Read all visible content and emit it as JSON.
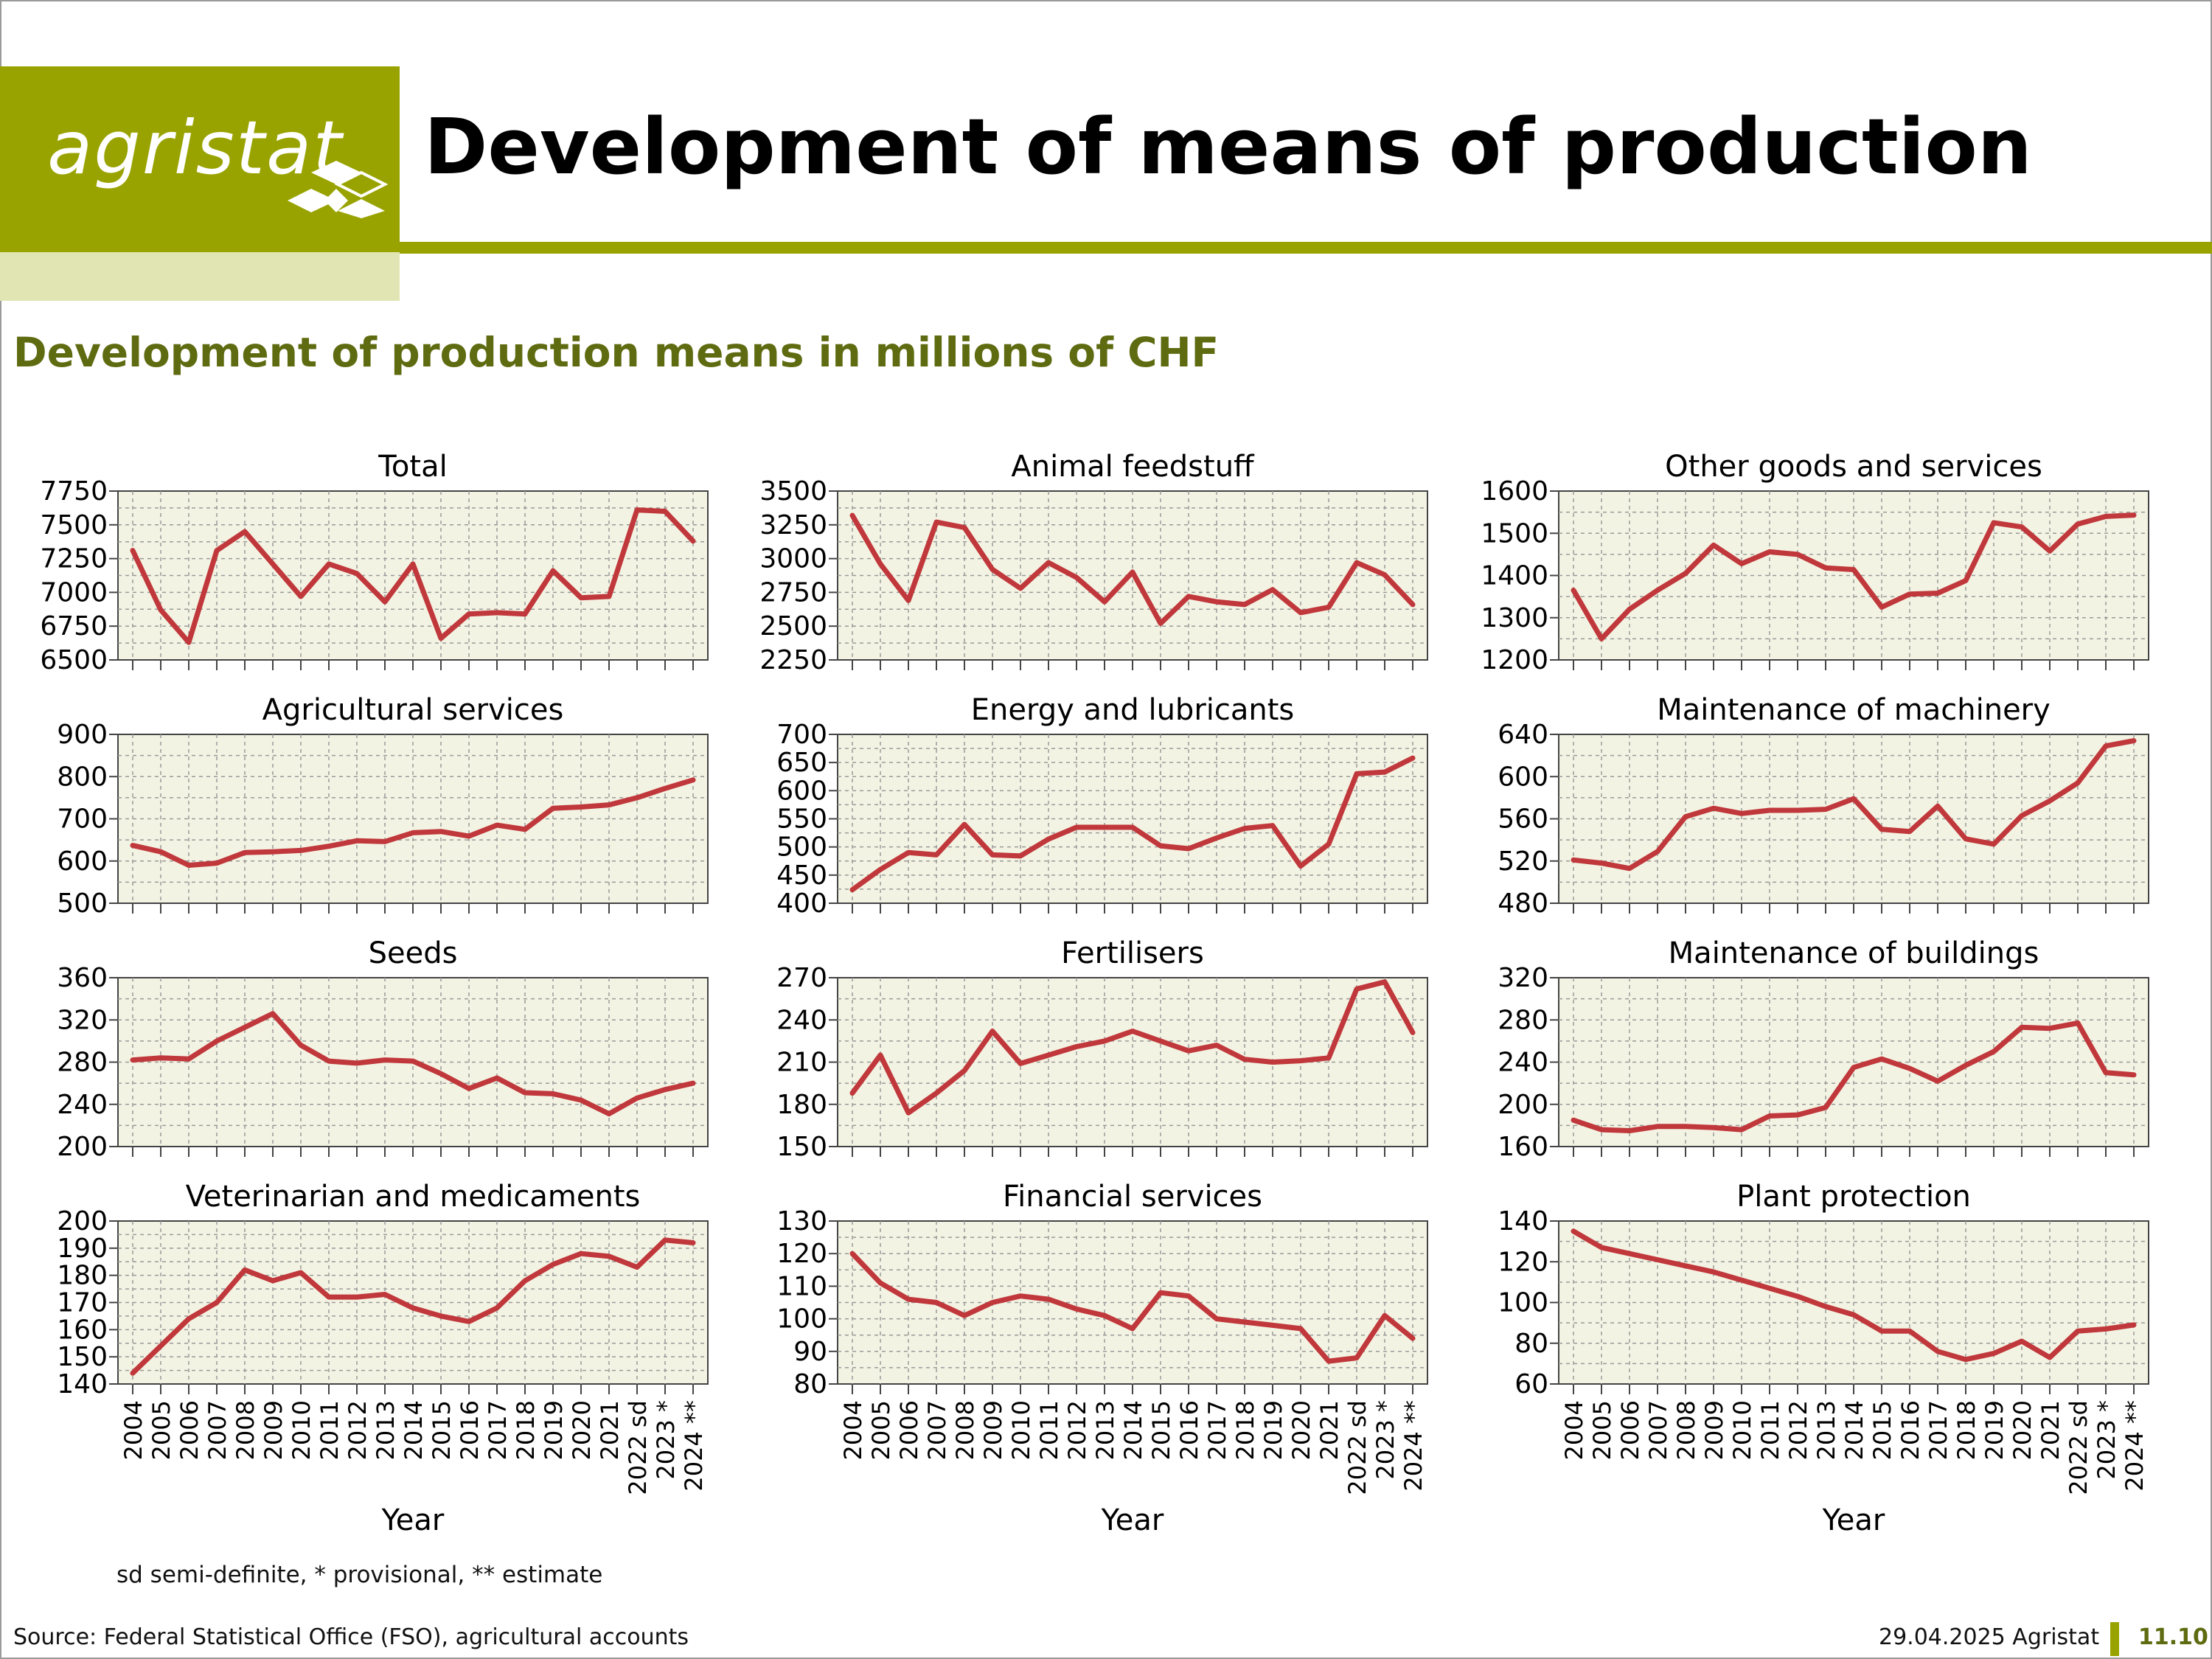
{
  "header": {
    "logo_text": "agristat",
    "title": "Development of means of production",
    "subtitle": "Development of production means in millions of CHF"
  },
  "footer": {
    "footnote": "sd semi-definite, * provisional, ** estimate",
    "source": "Source: Federal Statistical Office (FSO), agricultural accounts",
    "date": "29.04.2025 Agristat",
    "page": "11.10"
  },
  "colors": {
    "brand": "#99a300",
    "brand_light": "#e1e5b4",
    "subtitle": "#5f6b10",
    "line": "#c0383b",
    "plot_bg": "#f3f3e3"
  },
  "chart_data": [
    {
      "type": "line",
      "title": "Total",
      "ylim": [
        6500,
        7750
      ],
      "yticks": [
        6500,
        6750,
        7000,
        7250,
        7500,
        7750
      ],
      "grid": true,
      "x": [
        "2004",
        "2005",
        "2006",
        "2007",
        "2008",
        "2009",
        "2010",
        "2011",
        "2012",
        "2013",
        "2014",
        "2015",
        "2016",
        "2017",
        "2018",
        "2019",
        "2020",
        "2021",
        "2022 sd",
        "2023 *",
        "2024 **"
      ],
      "values": [
        7310,
        6870,
        6630,
        7310,
        7450,
        7210,
        6970,
        7210,
        7140,
        6930,
        7210,
        6660,
        6840,
        6850,
        6840,
        7160,
        6960,
        6970,
        7610,
        7600,
        7380
      ]
    },
    {
      "type": "line",
      "title": "Animal feedstuff",
      "ylim": [
        2250,
        3500
      ],
      "yticks": [
        2250,
        2500,
        2750,
        3000,
        3250,
        3500
      ],
      "grid": true,
      "x": [
        "2004",
        "2005",
        "2006",
        "2007",
        "2008",
        "2009",
        "2010",
        "2011",
        "2012",
        "2013",
        "2014",
        "2015",
        "2016",
        "2017",
        "2018",
        "2019",
        "2020",
        "2021",
        "2022 sd",
        "2023 *",
        "2024 **"
      ],
      "values": [
        3320,
        2960,
        2690,
        3270,
        3230,
        2920,
        2780,
        2970,
        2860,
        2680,
        2900,
        2520,
        2720,
        2680,
        2660,
        2770,
        2600,
        2640,
        2970,
        2880,
        2660
      ]
    },
    {
      "type": "line",
      "title": "Other goods and services",
      "ylim": [
        1200,
        1600
      ],
      "yticks": [
        1200,
        1300,
        1400,
        1500,
        1600
      ],
      "grid": true,
      "x": [
        "2004",
        "2005",
        "2006",
        "2007",
        "2008",
        "2009",
        "2010",
        "2011",
        "2012",
        "2013",
        "2014",
        "2015",
        "2016",
        "2017",
        "2018",
        "2019",
        "2020",
        "2021",
        "2022 sd",
        "2023 *",
        "2024 **"
      ],
      "values": [
        1365,
        1250,
        1320,
        1365,
        1405,
        1472,
        1428,
        1456,
        1450,
        1418,
        1414,
        1325,
        1356,
        1358,
        1388,
        1525,
        1515,
        1458,
        1522,
        1540,
        1543
      ]
    },
    {
      "type": "line",
      "title": "Agricultural services",
      "ylim": [
        500,
        900
      ],
      "yticks": [
        500,
        600,
        700,
        800,
        900
      ],
      "grid": true,
      "x": [
        "2004",
        "2005",
        "2006",
        "2007",
        "2008",
        "2009",
        "2010",
        "2011",
        "2012",
        "2013",
        "2014",
        "2015",
        "2016",
        "2017",
        "2018",
        "2019",
        "2020",
        "2021",
        "2022 sd",
        "2023 *",
        "2024 **"
      ],
      "values": [
        637,
        622,
        590,
        595,
        620,
        622,
        625,
        635,
        648,
        646,
        667,
        670,
        659,
        685,
        675,
        725,
        728,
        733,
        750,
        772,
        792
      ]
    },
    {
      "type": "line",
      "title": "Energy and lubricants",
      "ylim": [
        400,
        700
      ],
      "yticks": [
        400,
        450,
        500,
        550,
        600,
        650,
        700
      ],
      "grid": true,
      "x": [
        "2004",
        "2005",
        "2006",
        "2007",
        "2008",
        "2009",
        "2010",
        "2011",
        "2012",
        "2013",
        "2014",
        "2015",
        "2016",
        "2017",
        "2018",
        "2019",
        "2020",
        "2021",
        "2022 sd",
        "2023 *",
        "2024 **"
      ],
      "values": [
        424,
        460,
        490,
        486,
        540,
        486,
        484,
        514,
        535,
        535,
        535,
        502,
        497,
        516,
        533,
        538,
        466,
        505,
        630,
        633,
        658
      ]
    },
    {
      "type": "line",
      "title": "Maintenance of machinery",
      "ylim": [
        480,
        640
      ],
      "yticks": [
        480,
        520,
        560,
        600,
        640
      ],
      "grid": true,
      "x": [
        "2004",
        "2005",
        "2006",
        "2007",
        "2008",
        "2009",
        "2010",
        "2011",
        "2012",
        "2013",
        "2014",
        "2015",
        "2016",
        "2017",
        "2018",
        "2019",
        "2020",
        "2021",
        "2022 sd",
        "2023 *",
        "2024 **"
      ],
      "values": [
        521,
        518,
        513,
        529,
        562,
        570,
        565,
        568,
        568,
        569,
        579,
        550,
        548,
        572,
        541,
        536,
        563,
        577,
        594,
        629,
        634
      ]
    },
    {
      "type": "line",
      "title": "Seeds",
      "ylim": [
        200,
        360
      ],
      "yticks": [
        200,
        240,
        280,
        320,
        360
      ],
      "grid": true,
      "x": [
        "2004",
        "2005",
        "2006",
        "2007",
        "2008",
        "2009",
        "2010",
        "2011",
        "2012",
        "2013",
        "2014",
        "2015",
        "2016",
        "2017",
        "2018",
        "2019",
        "2020",
        "2021",
        "2022 sd",
        "2023 *",
        "2024 **"
      ],
      "values": [
        282,
        284,
        283,
        300,
        313,
        326,
        296,
        281,
        279,
        282,
        281,
        269,
        255,
        265,
        251,
        250,
        244,
        231,
        246,
        254,
        260
      ]
    },
    {
      "type": "line",
      "title": "Fertilisers",
      "ylim": [
        150,
        270
      ],
      "yticks": [
        150,
        180,
        210,
        240,
        270
      ],
      "grid": true,
      "x": [
        "2004",
        "2005",
        "2006",
        "2007",
        "2008",
        "2009",
        "2010",
        "2011",
        "2012",
        "2013",
        "2014",
        "2015",
        "2016",
        "2017",
        "2018",
        "2019",
        "2020",
        "2021",
        "2022 sd",
        "2023 *",
        "2024 **"
      ],
      "values": [
        188,
        215,
        174,
        188,
        204,
        232,
        209,
        215,
        221,
        225,
        232,
        225,
        218,
        222,
        212,
        210,
        211,
        213,
        262,
        267,
        231
      ]
    },
    {
      "type": "line",
      "title": "Maintenance of buildings",
      "ylim": [
        160,
        320
      ],
      "yticks": [
        160,
        200,
        240,
        280,
        320
      ],
      "grid": true,
      "x": [
        "2004",
        "2005",
        "2006",
        "2007",
        "2008",
        "2009",
        "2010",
        "2011",
        "2012",
        "2013",
        "2014",
        "2015",
        "2016",
        "2017",
        "2018",
        "2019",
        "2020",
        "2021",
        "2022 sd",
        "2023 *",
        "2024 **"
      ],
      "values": [
        185,
        176,
        175,
        179,
        179,
        178,
        176,
        189,
        190,
        197,
        235,
        243,
        234,
        222,
        237,
        250,
        273,
        272,
        277,
        230,
        228
      ]
    },
    {
      "type": "line",
      "title": "Veterinarian and medicaments",
      "ylim": [
        140,
        200
      ],
      "yticks": [
        140,
        150,
        160,
        170,
        180,
        190,
        200
      ],
      "grid": true,
      "x": [
        "2004",
        "2005",
        "2006",
        "2007",
        "2008",
        "2009",
        "2010",
        "2011",
        "2012",
        "2013",
        "2014",
        "2015",
        "2016",
        "2017",
        "2018",
        "2019",
        "2020",
        "2021",
        "2022 sd",
        "2023 *",
        "2024 **"
      ],
      "values": [
        144,
        154,
        164,
        170,
        182,
        178,
        181,
        172,
        172,
        173,
        168,
        165,
        163,
        168,
        178,
        184,
        188,
        187,
        183,
        193,
        192
      ]
    },
    {
      "type": "line",
      "title": "Financial services",
      "ylim": [
        80,
        130
      ],
      "yticks": [
        80,
        90,
        100,
        110,
        120,
        130
      ],
      "grid": true,
      "x": [
        "2004",
        "2005",
        "2006",
        "2007",
        "2008",
        "2009",
        "2010",
        "2011",
        "2012",
        "2013",
        "2014",
        "2015",
        "2016",
        "2017",
        "2018",
        "2019",
        "2020",
        "2021",
        "2022 sd",
        "2023 *",
        "2024 **"
      ],
      "values": [
        120,
        111,
        106,
        105,
        101,
        105,
        107,
        106,
        103,
        101,
        97,
        108,
        107,
        100,
        99,
        98,
        97,
        87,
        88,
        101,
        94
      ]
    },
    {
      "type": "line",
      "title": "Plant protection",
      "ylim": [
        60,
        140
      ],
      "yticks": [
        60,
        80,
        100,
        120,
        140
      ],
      "grid": true,
      "x": [
        "2004",
        "2005",
        "2006",
        "2007",
        "2008",
        "2009",
        "2010",
        "2011",
        "2012",
        "2013",
        "2014",
        "2015",
        "2016",
        "2017",
        "2018",
        "2019",
        "2020",
        "2021",
        "2022 sd",
        "2023 *",
        "2024 **"
      ],
      "values": [
        135,
        127,
        124,
        121,
        118,
        115,
        111,
        107,
        103,
        98,
        94,
        86,
        86,
        76,
        72,
        75,
        81,
        73,
        86,
        87,
        89
      ]
    }
  ],
  "axes": {
    "xlabel": "Year"
  }
}
